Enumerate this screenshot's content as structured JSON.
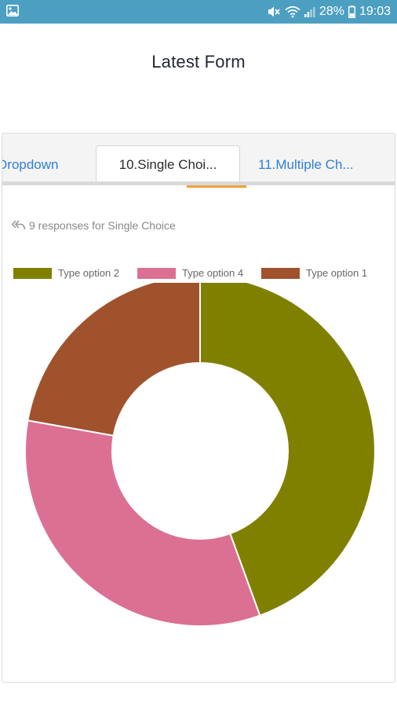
{
  "status_bar": {
    "battery_percent": "28%",
    "time": "19:03"
  },
  "page": {
    "title": "Latest Form"
  },
  "tabs": [
    {
      "label": "Dropdown",
      "active": false
    },
    {
      "label": "10.Single Choi...",
      "active": true
    },
    {
      "label": "11.Multiple Ch...",
      "active": false
    }
  ],
  "responses_text": "9 responses for Single Choice",
  "chart_data": {
    "type": "pie",
    "donut": true,
    "title": "",
    "legend_position": "top",
    "slices": [
      {
        "label": "Type option 2",
        "value": 4,
        "color": "#808000"
      },
      {
        "label": "Type option 4",
        "value": 3,
        "color": "#db7093"
      },
      {
        "label": "Type option 1",
        "value": 2,
        "color": "#a0522d"
      }
    ]
  },
  "colors": {
    "status_bar": "#4d9fc2",
    "tab_link": "#2f7fd6",
    "tab_indicator": "#f2a03d"
  }
}
